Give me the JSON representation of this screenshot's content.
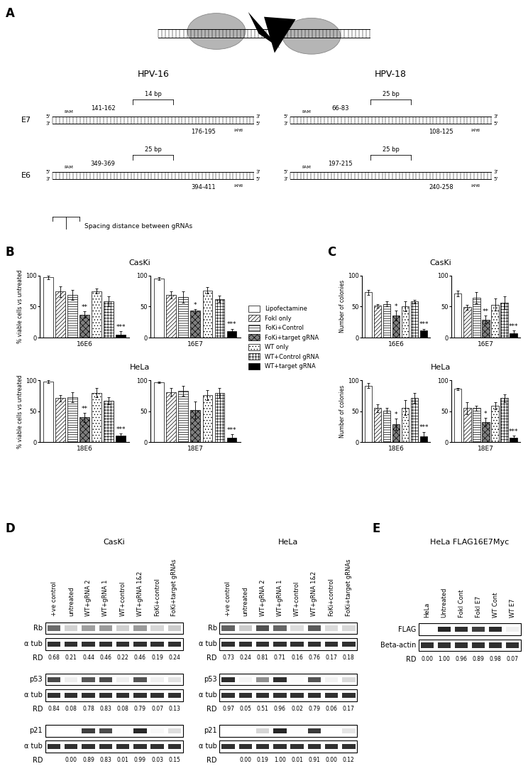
{
  "chart_data": [
    {
      "type": "bar",
      "panel": "B",
      "title": "CasKi",
      "y_label": "% viable cells vs untreated",
      "legend": "center",
      "categories": [
        "16E6"
      ],
      "ylim": [
        0,
        100
      ],
      "yticks": [
        0,
        50,
        100
      ],
      "series": [
        {
          "name": "Lipofectamine",
          "color": "#ffffff",
          "values": [
            97
          ],
          "errors": [
            3
          ]
        },
        {
          "name": "FokI only",
          "color": "#ffffff",
          "values": [
            74
          ],
          "errors": [
            9
          ]
        },
        {
          "name": "FoKi+Control",
          "color": "#ffffff",
          "values": [
            69
          ],
          "errors": [
            8
          ]
        },
        {
          "name": "FoKi+target gRNA",
          "color": "#7f7f7f",
          "values": [
            37
          ],
          "errors": [
            5
          ],
          "significance": "**"
        },
        {
          "name": "WT only",
          "color": "#ffffff",
          "values": [
            75
          ],
          "errors": [
            4
          ]
        },
        {
          "name": "WT+Control gRNA",
          "color": "#ffffff",
          "values": [
            58
          ],
          "errors": [
            8
          ]
        },
        {
          "name": "WT+target gRNA",
          "color": "#000000",
          "values": [
            5
          ],
          "errors": [
            5
          ],
          "significance": "***"
        }
      ]
    },
    {
      "type": "bar",
      "panel": "B",
      "categories": [
        "16E7"
      ],
      "ylim": [
        0,
        100
      ],
      "yticks": [
        0,
        50,
        100
      ],
      "series": [
        {
          "name": "Lipofectamine",
          "color": "#ffffff",
          "values": [
            95
          ],
          "errors": [
            2
          ]
        },
        {
          "name": "FokI only",
          "color": "#ffffff",
          "values": [
            69
          ],
          "errors": [
            6
          ]
        },
        {
          "name": "FoKi+Control",
          "color": "#ffffff",
          "values": [
            65
          ],
          "errors": [
            9
          ]
        },
        {
          "name": "FoKi+target gRNA",
          "color": "#7f7f7f",
          "values": [
            43
          ],
          "errors": [
            3
          ],
          "significance": "*"
        },
        {
          "name": "WT only",
          "color": "#ffffff",
          "values": [
            76
          ],
          "errors": [
            5
          ]
        },
        {
          "name": "WT+Control gRNA",
          "color": "#ffffff",
          "values": [
            62
          ],
          "errors": [
            5
          ]
        },
        {
          "name": "WT+target gRNA",
          "color": "#000000",
          "values": [
            10
          ],
          "errors": [
            4
          ],
          "significance": "***"
        }
      ]
    },
    {
      "type": "bar",
      "panel": "B",
      "title": "HeLa",
      "y_label": "% viable cells vs untreated",
      "categories": [
        "18E6"
      ],
      "ylim": [
        0,
        100
      ],
      "yticks": [
        0,
        50,
        100
      ],
      "series": [
        {
          "name": "Lipofectamine",
          "color": "#ffffff",
          "values": [
            98
          ],
          "errors": [
            2
          ]
        },
        {
          "name": "FokI only",
          "color": "#ffffff",
          "values": [
            71
          ],
          "errors": [
            5
          ]
        },
        {
          "name": "FoKi+Control",
          "color": "#ffffff",
          "values": [
            73
          ],
          "errors": [
            8
          ]
        },
        {
          "name": "FoKi+target gRNA",
          "color": "#7f7f7f",
          "values": [
            40
          ],
          "errors": [
            7
          ],
          "significance": "**"
        },
        {
          "name": "WT only",
          "color": "#ffffff",
          "values": [
            80
          ],
          "errors": [
            7
          ]
        },
        {
          "name": "WT+Control gRNA",
          "color": "#ffffff",
          "values": [
            67
          ],
          "errors": [
            6
          ]
        },
        {
          "name": "WT+target gRNA",
          "color": "#000000",
          "values": [
            11
          ],
          "errors": [
            3
          ],
          "significance": "***"
        }
      ]
    },
    {
      "type": "bar",
      "panel": "B",
      "categories": [
        "18E7"
      ],
      "ylim": [
        0,
        100
      ],
      "yticks": [
        0,
        50,
        100
      ],
      "series": [
        {
          "name": "Lipofectamine",
          "color": "#ffffff",
          "values": [
            97
          ],
          "errors": [
            1
          ]
        },
        {
          "name": "FokI only",
          "color": "#ffffff",
          "values": [
            81
          ],
          "errors": [
            6
          ]
        },
        {
          "name": "FoKi+Control",
          "color": "#ffffff",
          "values": [
            83
          ],
          "errors": [
            8
          ]
        },
        {
          "name": "FoKi+target gRNA",
          "color": "#7f7f7f",
          "values": [
            52
          ],
          "errors": [
            14
          ]
        },
        {
          "name": "WT only",
          "color": "#ffffff",
          "values": [
            76
          ],
          "errors": [
            8
          ]
        },
        {
          "name": "WT+Control gRNA",
          "color": "#ffffff",
          "values": [
            79
          ],
          "errors": [
            8
          ]
        },
        {
          "name": "WT+target gRNA",
          "color": "#000000",
          "values": [
            7
          ],
          "errors": [
            6
          ],
          "significance": "***"
        }
      ]
    },
    {
      "type": "bar",
      "panel": "C",
      "title": "CasKi",
      "y_label": "Number of colonies",
      "categories": [
        "16E6"
      ],
      "ylim": [
        0,
        100
      ],
      "yticks": [
        0,
        50,
        100
      ],
      "series": [
        {
          "name": "Lipofectamine",
          "color": "#ffffff",
          "values": [
            73
          ],
          "errors": [
            4
          ]
        },
        {
          "name": "FokI only",
          "color": "#ffffff",
          "values": [
            51
          ],
          "errors": [
            3
          ]
        },
        {
          "name": "FoKi+Control",
          "color": "#ffffff",
          "values": [
            54
          ],
          "errors": [
            4
          ]
        },
        {
          "name": "FoKi+target gRNA",
          "color": "#7f7f7f",
          "values": [
            35
          ],
          "errors": [
            8
          ],
          "significance": "*"
        },
        {
          "name": "WT only",
          "color": "#ffffff",
          "values": [
            50
          ],
          "errors": [
            8
          ]
        },
        {
          "name": "WT+Control gRNA",
          "color": "#ffffff",
          "values": [
            58
          ],
          "errors": [
            3
          ]
        },
        {
          "name": "WT+target gRNA",
          "color": "#000000",
          "values": [
            12
          ],
          "errors": [
            2
          ],
          "significance": "***"
        }
      ]
    },
    {
      "type": "bar",
      "panel": "C",
      "categories": [
        "16E7"
      ],
      "ylim": [
        0,
        100
      ],
      "yticks": [
        0,
        50,
        100
      ],
      "series": [
        {
          "name": "Lipofectamine",
          "color": "#ffffff",
          "values": [
            71
          ],
          "errors": [
            5
          ]
        },
        {
          "name": "FokI only",
          "color": "#ffffff",
          "values": [
            49
          ],
          "errors": [
            4
          ]
        },
        {
          "name": "FoKi+Control",
          "color": "#ffffff",
          "values": [
            64
          ],
          "errors": [
            9
          ]
        },
        {
          "name": "FoKi+target gRNA",
          "color": "#7f7f7f",
          "values": [
            29
          ],
          "errors": [
            6
          ],
          "significance": "**"
        },
        {
          "name": "WT only",
          "color": "#ffffff",
          "values": [
            53
          ],
          "errors": [
            10
          ]
        },
        {
          "name": "WT+Control gRNA",
          "color": "#ffffff",
          "values": [
            56
          ],
          "errors": [
            10
          ]
        },
        {
          "name": "WT+target gRNA",
          "color": "#000000",
          "values": [
            7
          ],
          "errors": [
            4
          ],
          "significance": "***"
        }
      ]
    },
    {
      "type": "bar",
      "panel": "C",
      "title": "HeLa",
      "y_label": "Number of colonies",
      "categories": [
        "18E6"
      ],
      "ylim": [
        0,
        100
      ],
      "yticks": [
        0,
        50,
        100
      ],
      "series": [
        {
          "name": "Lipofectamine",
          "color": "#ffffff",
          "values": [
            91
          ],
          "errors": [
            4
          ]
        },
        {
          "name": "FokI only",
          "color": "#ffffff",
          "values": [
            55
          ],
          "errors": [
            6
          ]
        },
        {
          "name": "FoKi+Control",
          "color": "#ffffff",
          "values": [
            51
          ],
          "errors": [
            4
          ]
        },
        {
          "name": "FoKi+target gRNA",
          "color": "#7f7f7f",
          "values": [
            29
          ],
          "errors": [
            9
          ],
          "significance": "*"
        },
        {
          "name": "WT only",
          "color": "#ffffff",
          "values": [
            56
          ],
          "errors": [
            12
          ]
        },
        {
          "name": "WT+Control gRNA",
          "color": "#ffffff",
          "values": [
            71
          ],
          "errors": [
            8
          ]
        },
        {
          "name": "WT+target gRNA",
          "color": "#000000",
          "values": [
            10
          ],
          "errors": [
            7
          ],
          "significance": "***"
        }
      ]
    },
    {
      "type": "bar",
      "panel": "C",
      "categories": [
        "18E7"
      ],
      "ylim": [
        0,
        100
      ],
      "yticks": [
        0,
        50,
        100
      ],
      "series": [
        {
          "name": "Lipofectamine",
          "color": "#ffffff",
          "values": [
            86
          ],
          "errors": [
            2
          ]
        },
        {
          "name": "FokI only",
          "color": "#ffffff",
          "values": [
            55
          ],
          "errors": [
            10
          ]
        },
        {
          "name": "FoKi+Control",
          "color": "#ffffff",
          "values": [
            55
          ],
          "errors": [
            4
          ]
        },
        {
          "name": "FoKi+target gRNA",
          "color": "#7f7f7f",
          "values": [
            33
          ],
          "errors": [
            6
          ],
          "significance": "*"
        },
        {
          "name": "WT only",
          "color": "#ffffff",
          "values": [
            59
          ],
          "errors": [
            6
          ]
        },
        {
          "name": "WT+Control gRNA",
          "color": "#ffffff",
          "values": [
            71
          ],
          "errors": [
            6
          ]
        },
        {
          "name": "WT+target gRNA",
          "color": "#000000",
          "values": [
            7
          ],
          "errors": [
            4
          ],
          "significance": "***"
        }
      ]
    }
  ],
  "diagram": {
    "label": "A",
    "rows": [
      "E7",
      "E6"
    ],
    "columns": [
      {
        "title": "HPV-16",
        "sites": [
          {
            "left": "141-162",
            "spacing": "14 bp",
            "right": "176-195"
          },
          {
            "left": "349-369",
            "spacing": "25 bp",
            "right": "394-411"
          }
        ]
      },
      {
        "title": "HPV-18",
        "sites": [
          {
            "left": "66-83",
            "spacing": "25 bp",
            "right": "108-125"
          },
          {
            "left": "197-215",
            "spacing": "25 bp",
            "right": "240-258"
          }
        ]
      }
    ],
    "pam": "PAM",
    "five_prime": "5'",
    "three_prime": "3'",
    "key": "Spacing distance between gRNAs"
  },
  "blots": [
    {
      "panel": "D",
      "title": "CasKi",
      "lanes": [
        "+ve control",
        "untreated",
        "WT+gRNA 2",
        "WT+gRNA 1",
        "WT+control",
        "WT+gRNA 1&2",
        "FoKi+control",
        "FoKi+target gRNAs"
      ],
      "proteins": [
        {
          "name": "Rb",
          "loading": "α tub",
          "rd_label": "RD",
          "values": [
            0.68,
            0.21,
            0.44,
            0.46,
            0.22,
            0.46,
            0.19,
            0.24
          ],
          "value_labels": [
            "0.68",
            "0.21",
            "0.44",
            "0.46",
            "0.22",
            "0.46",
            "0.19",
            "0.24"
          ]
        },
        {
          "name": "p53",
          "loading": "α tub",
          "rd_label": "RD",
          "values": [
            0.84,
            0.08,
            0.78,
            0.83,
            0.08,
            0.79,
            0.07,
            0.13
          ],
          "value_labels": [
            "0.84",
            "0.08",
            "0.78",
            "0.83",
            "0.08",
            "0.79",
            "0.07",
            "0.13"
          ]
        },
        {
          "name": "p21",
          "loading": "α tub",
          "rd_label": "RD",
          "values": [
            null,
            0.0,
            0.89,
            0.83,
            0.01,
            0.99,
            0.03,
            0.15
          ],
          "value_labels": [
            null,
            "0.00",
            "0.89",
            "0.83",
            "0.01",
            "0.99",
            "0.03",
            "0.15"
          ]
        }
      ]
    },
    {
      "panel": "D",
      "title": "HeLa",
      "lanes": [
        "+ve control",
        "untreated",
        "WT+gRNA 2",
        "WT+gRNA 1",
        "WT+control",
        "WT+gRNA 1&2",
        "FoKi+control",
        "FoKi+target gRNAs"
      ],
      "proteins": [
        {
          "name": "Rb",
          "loading": "α tub",
          "rd_label": "RD",
          "values": [
            0.73,
            0.24,
            0.81,
            0.71,
            0.16,
            0.76,
            0.17,
            0.18
          ],
          "value_labels": [
            "0.73",
            "0.24",
            "0.81",
            "0.71",
            "0.16",
            "0.76",
            "0.17",
            "0.18"
          ]
        },
        {
          "name": "p53",
          "loading": "α tub",
          "rd_label": "RD",
          "values": [
            0.97,
            0.05,
            0.51,
            0.96,
            0.02,
            0.79,
            0.06,
            0.17
          ],
          "value_labels": [
            "0.97",
            "0.05",
            "0.51",
            "0.96",
            "0.02",
            "0.79",
            "0.06",
            "0.17"
          ]
        },
        {
          "name": "p21",
          "loading": "α tub",
          "rd_label": "RD",
          "values": [
            null,
            0.0,
            0.19,
            1.0,
            0.01,
            0.91,
            0.0,
            0.12
          ],
          "value_labels": [
            null,
            "0.00",
            "0.19",
            "1.00",
            "0.01",
            "0.91",
            "0.00",
            "0.12"
          ]
        }
      ]
    },
    {
      "panel": "E",
      "title": "HeLa FLAG16E7Myc",
      "lanes": [
        "HeLa",
        "Untreated",
        "FokI Cont",
        "FokI E7",
        "WT Cont",
        "WT E7"
      ],
      "proteins": [
        {
          "name": "FLAG",
          "loading": "Beta-actin",
          "rd_label": "RD",
          "values": [
            0.0,
            1.0,
            0.96,
            0.89,
            0.98,
            0.07
          ],
          "value_labels": [
            "0.00",
            "1.00",
            "0.96",
            "0.89",
            "0.98",
            "0.07"
          ]
        }
      ]
    }
  ]
}
